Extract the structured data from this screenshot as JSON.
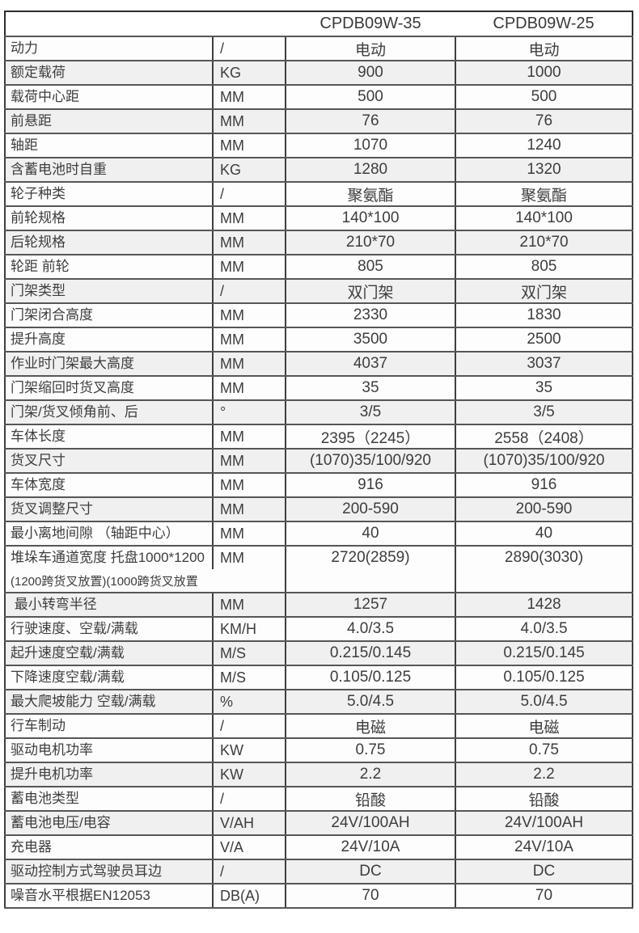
{
  "colors": {
    "outer_border": "#2d2d2d",
    "h_line": "#565656",
    "v_line": "#3f3f3f",
    "row_shade": "#f0f0f0",
    "row_plain": "#fdfdfd",
    "text": "#3d3d3d"
  },
  "table": {
    "header": {
      "model1": "CPDB09W-35",
      "model2": "CPDB09W-25"
    },
    "rows": [
      {
        "label": "动力",
        "unit": "/",
        "v1": "电动",
        "v2": "电动",
        "shade": false
      },
      {
        "label": "额定载荷",
        "unit": "KG",
        "v1": "900",
        "v2": "1000",
        "shade": true
      },
      {
        "label": "载荷中心距",
        "unit": "MM",
        "v1": "500",
        "v2": "500",
        "shade": false
      },
      {
        "label": "前悬距",
        "unit": "MM",
        "v1": "76",
        "v2": "76",
        "shade": true
      },
      {
        "label": "轴距",
        "unit": "MM",
        "v1": "1070",
        "v2": "1240",
        "shade": false
      },
      {
        "label": "含蓄电池时自重",
        "unit": "KG",
        "v1": "1280",
        "v2": "1320",
        "shade": true
      },
      {
        "label": "轮子种类",
        "unit": "/",
        "v1": "聚氨酯",
        "v2": "聚氨酯",
        "shade": false
      },
      {
        "label": "前轮规格",
        "unit": "MM",
        "v1": "140*100",
        "v2": "140*100",
        "shade": false
      },
      {
        "label": "后轮规格",
        "unit": "MM",
        "v1": "210*70",
        "v2": "210*70",
        "shade": true
      },
      {
        "label": "轮距 前轮",
        "unit": "MM",
        "v1": "805",
        "v2": "805",
        "shade": false
      },
      {
        "label": "门架类型",
        "unit": "/",
        "v1": "双门架",
        "v2": "双门架",
        "shade": true
      },
      {
        "label": "门架闭合高度",
        "unit": "MM",
        "v1": "2330",
        "v2": "1830",
        "shade": false
      },
      {
        "label": "提升高度",
        "unit": "MM",
        "v1": "3500",
        "v2": "2500",
        "shade": false
      },
      {
        "label": "作业时门架最大高度",
        "unit": "MM",
        "v1": "4037",
        "v2": "3037",
        "shade": true
      },
      {
        "label": "门架缩回时货叉高度",
        "unit": "MM",
        "v1": "35",
        "v2": "35",
        "shade": false
      },
      {
        "label": "门架/货叉倾角前、后",
        "unit": "°",
        "v1": "3/5",
        "v2": "3/5",
        "shade": true
      },
      {
        "label": "车体长度",
        "unit": "MM",
        "v1": "2395（2245）",
        "v2": "2558（2408）",
        "shade": false
      },
      {
        "label": "货叉尺寸",
        "unit": "MM",
        "v1": "(1070)35/100/920",
        "v2": "(1070)35/100/920",
        "shade": true
      },
      {
        "label": "车体宽度",
        "unit": "MM",
        "v1": "916",
        "v2": "916",
        "shade": false
      },
      {
        "label": "货叉调整尺寸",
        "unit": "MM",
        "v1": "200-590",
        "v2": "200-590",
        "shade": true
      },
      {
        "label": "最小离地间隙 （轴距中心）",
        "unit": "MM",
        "v1": "40",
        "v2": "40",
        "shade": false
      },
      {
        "label": "堆垛车通道宽度 托盘1000*1200",
        "label2": "(1200跨货叉放置)(1000跨货叉放置",
        "unit": "MM",
        "v1": "2720(2859)",
        "v2": "2890(3030)",
        "shade": false,
        "tall": true
      },
      {
        "label": " 最小转弯半径",
        "unit": "MM",
        "v1": "1257",
        "v2": "1428",
        "shade": true
      },
      {
        "label": "行驶速度、空载/满载",
        "unit": "KM/H",
        "v1": "4.0/3.5",
        "v2": "4.0/3.5",
        "shade": false
      },
      {
        "label": "起升速度空载/满载",
        "unit": "M/S",
        "v1": "0.215/0.145",
        "v2": "0.215/0.145",
        "shade": true
      },
      {
        "label": "下降速度空载/满载",
        "unit": "M/S",
        "v1": "0.105/0.125",
        "v2": "0.105/0.125",
        "shade": false
      },
      {
        "label": "最大爬坡能力 空载/满载",
        "unit": "%",
        "v1": "5.0/4.5",
        "v2": "5.0/4.5",
        "shade": true
      },
      {
        "label": "行车制动",
        "unit": "/",
        "v1": "电磁",
        "v2": "电磁",
        "shade": false
      },
      {
        "label": "驱动电机功率",
        "unit": "KW",
        "v1": "0.75",
        "v2": "0.75",
        "shade": false
      },
      {
        "label": "提升电机功率",
        "unit": "KW",
        "v1": "2.2",
        "v2": "2.2",
        "shade": true
      },
      {
        "label": "蓄电池类型",
        "unit": "/",
        "v1": "铅酸",
        "v2": "铅酸",
        "shade": false
      },
      {
        "label": "蓄电池电压/电容",
        "unit": "V/AH",
        "v1": "24V/100AH",
        "v2": "24V/100AH",
        "shade": true
      },
      {
        "label": "充电器",
        "unit": "V/A",
        "v1": "24V/10A",
        "v2": "24V/10A",
        "shade": false
      },
      {
        "label": "驱动控制方式驾驶员耳边",
        "unit": "/",
        "v1": "DC",
        "v2": "DC",
        "shade": true
      },
      {
        "label": "噪音水平根据EN12053",
        "unit": "DB(A)",
        "v1": "70",
        "v2": "70",
        "shade": false
      }
    ]
  }
}
